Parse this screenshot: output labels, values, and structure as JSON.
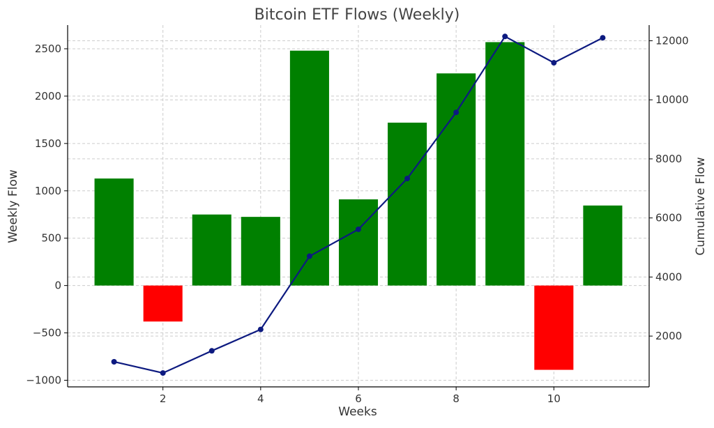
{
  "chart_data": {
    "type": "bar",
    "title": "Bitcoin ETF Flows (Weekly)",
    "xlabel": "Weeks",
    "ylabel": "Weekly Flow",
    "y2label": "Cumulative Flow",
    "x": [
      1,
      2,
      3,
      4,
      5,
      6,
      7,
      8,
      9,
      10,
      11
    ],
    "xlim": [
      0.05,
      11.95
    ],
    "xticks": [
      2,
      4,
      6,
      8,
      10
    ],
    "ylim": [
      -1070,
      2750
    ],
    "yticks": [
      -1000,
      -500,
      0,
      500,
      1000,
      1500,
      2000,
      2500
    ],
    "y2lim": [
      280,
      12530
    ],
    "y2ticks": [
      2000,
      4000,
      6000,
      8000,
      10000,
      12000
    ],
    "grid": true,
    "series": [
      {
        "kind": "bar",
        "axis": "left",
        "values": [
          1130,
          -380,
          750,
          725,
          2480,
          910,
          1720,
          2240,
          2570,
          -890,
          845
        ]
      },
      {
        "kind": "line",
        "axis": "right",
        "values": [
          1130,
          750,
          1500,
          2225,
          4705,
          5615,
          7335,
          9575,
          12145,
          11255,
          12100
        ]
      }
    ],
    "colors": {
      "positive": "#008000",
      "negative": "#ff0000",
      "line": "#0d1a80",
      "y2label": "#1a1a8c"
    }
  }
}
